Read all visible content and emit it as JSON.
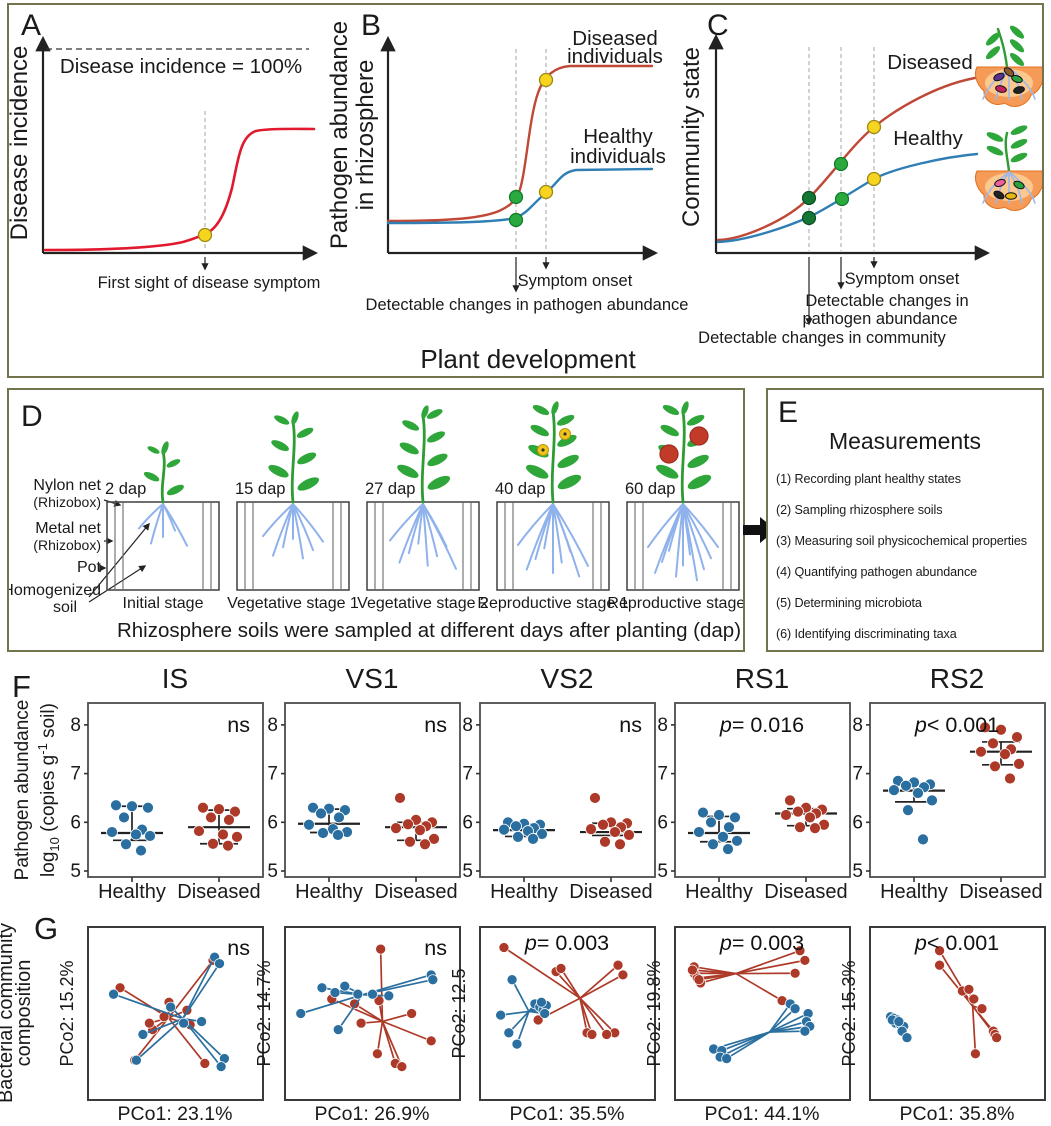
{
  "colors": {
    "frame_olive": "#74744c",
    "curve_red_bright": "#e0192e",
    "curve_red": "#bf4936",
    "curve_blue": "#2f7fb5",
    "dot_yellow": "#f6d41f",
    "dot_green": "#29a93e",
    "dot_dark_green": "#157533",
    "scatter_blue": "#2a6f9f",
    "scatter_red": "#ad3a28",
    "root_blue": "#8fb2ec",
    "soil_orange": "#f59b57",
    "plant_green": "#2fa63a"
  },
  "x_shared_label": "Plant development",
  "panel_a": {
    "label": "A",
    "y_label": "Disease incidence",
    "ceiling_label": "Disease incidence = 100%",
    "annotation": "First sight of disease symptom"
  },
  "panel_b": {
    "label": "B",
    "y_label": [
      "Pathogen abundance",
      "in rhizosphere"
    ],
    "diseased_label": [
      "Diseased",
      "individuals"
    ],
    "healthy_label": [
      "Healthy",
      "individuals"
    ],
    "symptom_onset": "Symptom onset",
    "detect_pathogen": "Detectable changes in pathogen abundance"
  },
  "panel_c": {
    "label": "C",
    "y_label": "Community state",
    "diseased_label": "Diseased",
    "healthy_label": "Healthy",
    "symptom_onset": "Symptom onset",
    "detect_pathogen": [
      "Detectable changes in",
      "pathogen abundance"
    ],
    "detect_community": "Detectable changes in community"
  },
  "panel_d": {
    "label": "D",
    "left_annotations": [
      {
        "lines": [
          "Nylon net",
          "(Rhizobox)"
        ]
      },
      {
        "lines": [
          "Metal net",
          "(Rhizobox)"
        ]
      },
      {
        "lines": [
          "Pot"
        ]
      },
      {
        "lines": [
          "Homogenized",
          "soil"
        ]
      }
    ],
    "stages": [
      {
        "dap": "2 dap",
        "name": "Initial stage"
      },
      {
        "dap": "15 dap",
        "name": "Vegetative stage 1"
      },
      {
        "dap": "27 dap",
        "name": "Vegetative stage 2"
      },
      {
        "dap": "40 dap",
        "name": "Reproductive stage 1"
      },
      {
        "dap": "60 dap",
        "name": "Reproductive stage 2"
      }
    ],
    "caption": "Rhizosphere soils were sampled at different days after planting (dap)"
  },
  "panel_e": {
    "label": "E",
    "title": "Measurements",
    "items": [
      "(1) Recording plant healthy states",
      "(2) Sampling rhizosphere soils",
      "(3) Measuring soil physicochemical properties",
      "(4) Quantifying pathogen abundance",
      "(5) Determining microbiota",
      "(6) Identifying discriminating taxa"
    ]
  },
  "panel_f": {
    "label": "F",
    "y_label_line1": "Pathogen abundance",
    "y_label_line2_parts": [
      {
        "t": "log"
      },
      {
        "t": "10",
        "s": "sub"
      },
      {
        "t": " (copies g"
      },
      {
        "t": "-1",
        "s": "sup"
      },
      {
        "t": " soil)"
      }
    ],
    "categories": [
      "Healthy",
      "Diseased"
    ]
  },
  "panel_g": {
    "label": "G",
    "y_label": [
      "Bacterial community",
      "composition"
    ]
  },
  "chart_data": [
    {
      "id": "A",
      "type": "line",
      "conceptual": true,
      "ylabel": "Disease incidence",
      "xlabel": "Plant development",
      "series": [
        {
          "name": "Disease incidence",
          "shape": "sigmoid",
          "color": "#e0192e"
        }
      ],
      "annotations": [
        "Disease incidence = 100%",
        "First sight of disease symptom"
      ],
      "markers": [
        {
          "type": "yellow-dot",
          "meaning": "first sight of disease symptom"
        }
      ]
    },
    {
      "id": "B",
      "type": "line",
      "conceptual": true,
      "ylabel": "Pathogen abundance in rhizosphere",
      "xlabel": "Plant development",
      "series": [
        {
          "name": "Diseased individuals",
          "shape": "steep sigmoid, high plateau",
          "color": "#bf4936"
        },
        {
          "name": "Healthy individuals",
          "shape": "shallow sigmoid, low plateau",
          "color": "#2f7fb5"
        }
      ],
      "annotations": [
        "Symptom onset",
        "Detectable changes in pathogen abundance"
      ],
      "markers": [
        {
          "type": "green-dot",
          "meaning": "detectable change"
        },
        {
          "type": "yellow-dot",
          "meaning": "symptom onset"
        }
      ]
    },
    {
      "id": "C",
      "type": "line",
      "conceptual": true,
      "ylabel": "Community state",
      "xlabel": "Plant development",
      "series": [
        {
          "name": "Diseased",
          "shape": "smooth S-curve, high plateau",
          "color": "#bf4936"
        },
        {
          "name": "Healthy",
          "shape": "smooth S-curve, low plateau",
          "color": "#2f7fb5"
        }
      ],
      "annotations": [
        "Symptom onset",
        "Detectable changes in pathogen abundance",
        "Detectable changes in community"
      ],
      "markers": [
        {
          "type": "dark-green-dot",
          "meaning": "detectable changes in community"
        },
        {
          "type": "green-dot",
          "meaning": "detectable changes in pathogen abundance"
        },
        {
          "type": "yellow-dot",
          "meaning": "symptom onset"
        }
      ]
    },
    {
      "id": "F",
      "type": "scatter",
      "subtype": "strip-dot-plot",
      "ylabel": "Pathogen abundance log10 (copies g-1 soil)",
      "ylim": [
        4.9,
        8.5
      ],
      "yticks": [
        5,
        6,
        7,
        8
      ],
      "categories": [
        "Healthy",
        "Diseased"
      ],
      "plots": [
        {
          "stage": "IS",
          "significance": "ns",
          "healthy": {
            "values": [
              6.35,
              6.33,
              6.3,
              6.1,
              5.85,
              5.8,
              5.75,
              5.72,
              5.55,
              5.42
            ],
            "median": 5.78,
            "lo": 5.63,
            "hi": 6.33
          },
          "diseased": {
            "values": [
              6.3,
              6.27,
              6.22,
              6.1,
              6.05,
              5.82,
              5.75,
              5.7,
              5.56,
              5.52
            ],
            "median": 5.9,
            "lo": 5.56,
            "hi": 6.25
          }
        },
        {
          "stage": "VS1",
          "significance": "ns",
          "healthy": {
            "values": [
              6.3,
              6.28,
              6.25,
              6.18,
              6.1,
              5.95,
              5.86,
              5.8,
              5.78,
              5.74
            ],
            "median": 5.97,
            "lo": 5.79,
            "hi": 6.27
          },
          "diseased": {
            "values": [
              6.5,
              6.05,
              6.0,
              5.96,
              5.92,
              5.88,
              5.84,
              5.66,
              5.6,
              5.55
            ],
            "median": 5.9,
            "lo": 5.63,
            "hi": 6.0
          }
        },
        {
          "stage": "VS2",
          "significance": "ns",
          "healthy": {
            "values": [
              6.0,
              5.97,
              5.95,
              5.92,
              5.88,
              5.85,
              5.82,
              5.76,
              5.7,
              5.66
            ],
            "median": 5.84,
            "lo": 5.71,
            "hi": 5.96
          },
          "diseased": {
            "values": [
              6.5,
              6.0,
              5.98,
              5.95,
              5.9,
              5.86,
              5.8,
              5.74,
              5.6,
              5.55
            ],
            "median": 5.8,
            "lo": 5.73,
            "hi": 5.98
          }
        },
        {
          "stage": "RS1",
          "significance": "p= 0.016",
          "healthy": {
            "values": [
              6.2,
              6.15,
              6.1,
              6.0,
              5.9,
              5.8,
              5.7,
              5.62,
              5.55,
              5.45
            ],
            "median": 5.78,
            "lo": 5.6,
            "hi": 6.12
          },
          "diseased": {
            "values": [
              6.45,
              6.3,
              6.26,
              6.22,
              6.18,
              6.15,
              6.1,
              5.95,
              5.9,
              5.88
            ],
            "median": 6.18,
            "lo": 5.93,
            "hi": 6.28
          }
        },
        {
          "stage": "RS2",
          "significance": "p< 0.001",
          "healthy": {
            "values": [
              6.85,
              6.82,
              6.78,
              6.75,
              6.72,
              6.66,
              6.6,
              6.45,
              6.25,
              5.65
            ],
            "median": 6.65,
            "lo": 6.42,
            "hi": 6.78
          },
          "diseased": {
            "values": [
              7.95,
              7.9,
              7.75,
              7.62,
              7.5,
              7.45,
              7.4,
              7.2,
              7.15,
              6.9
            ],
            "median": 7.45,
            "lo": 7.18,
            "hi": 7.65
          }
        }
      ]
    },
    {
      "id": "G",
      "type": "scatter",
      "subtype": "pcoa-spider",
      "ylabel": "Bacterial community composition",
      "plots": [
        {
          "stage": "IS",
          "significance": "ns",
          "xlabel": "PCo1: 23.1%",
          "ylabel": "PCo2: 15.2%",
          "healthy": [
            [
              12,
              38
            ],
            [
              47,
              46
            ],
            [
              55,
              56
            ],
            [
              66,
              55
            ],
            [
              30,
              63
            ],
            [
              26,
              79
            ],
            [
              74,
              15
            ],
            [
              77,
              19
            ],
            [
              80,
              78
            ],
            [
              78,
              83
            ]
          ],
          "diseased": [
            [
              16,
              34
            ],
            [
              43,
              52
            ],
            [
              57,
              48
            ],
            [
              36,
              60
            ],
            [
              25,
              79
            ],
            [
              73,
              17
            ],
            [
              59,
              57
            ],
            [
              46,
              43
            ],
            [
              68,
              81
            ],
            [
              34,
              56
            ]
          ]
        },
        {
          "stage": "VS1",
          "significance": "ns",
          "xlabel": "PCo1: 26.9%",
          "ylabel": "PCo2: 14.7%",
          "healthy": [
            [
              6,
              50
            ],
            [
              19,
              34
            ],
            [
              27,
              37
            ],
            [
              33,
              33
            ],
            [
              41,
              38
            ],
            [
              50,
              38
            ],
            [
              60,
              39
            ],
            [
              86,
              26
            ],
            [
              87,
              29
            ],
            [
              29,
              60
            ]
          ],
          "diseased": [
            [
              55,
              10
            ],
            [
              25,
              41
            ],
            [
              39,
              44
            ],
            [
              54,
              42
            ],
            [
              74,
              50
            ],
            [
              86,
              67
            ],
            [
              53,
              75
            ],
            [
              64,
              81
            ],
            [
              68,
              83
            ],
            [
              43,
              56
            ]
          ]
        },
        {
          "stage": "VS2",
          "significance": "p= 0.003",
          "xlabel": "PCo1: 35.5%",
          "ylabel": "PCo2: 12.5",
          "healthy": [
            [
              16,
              29
            ],
            [
              9,
              51
            ],
            [
              14,
              62
            ],
            [
              19,
              69
            ],
            [
              30,
              44
            ],
            [
              33,
              46
            ],
            [
              35,
              48
            ],
            [
              37,
              45
            ],
            [
              34,
              43
            ],
            [
              36,
              50
            ]
          ],
          "diseased": [
            [
              11,
              9
            ],
            [
              43,
              24
            ],
            [
              46,
              22
            ],
            [
              81,
              20
            ],
            [
              84,
              26
            ],
            [
              32,
              54
            ],
            [
              62,
              62
            ],
            [
              65,
              63
            ],
            [
              79,
              62
            ],
            [
              74,
              63
            ]
          ]
        },
        {
          "stage": "RS1",
          "significance": "p= 0.003",
          "xlabel": "PCo1: 44.1%",
          "ylabel": "PCo2: 19.8%",
          "healthy": [
            [
              67,
              44
            ],
            [
              70,
              47
            ],
            [
              78,
              50
            ],
            [
              77,
              55
            ],
            [
              79,
              58
            ],
            [
              76,
              61
            ],
            [
              20,
              72
            ],
            [
              25,
              73
            ],
            [
              24,
              77
            ],
            [
              28,
              78
            ]
          ],
          "diseased": [
            [
              8,
              21
            ],
            [
              8,
              25
            ],
            [
              10,
              28
            ],
            [
              12,
              31
            ],
            [
              7,
              23
            ],
            [
              73,
              11
            ],
            [
              76,
              17
            ],
            [
              70,
              25
            ],
            [
              62,
              42
            ],
            [
              11,
              29
            ]
          ]
        },
        {
          "stage": "RS2",
          "significance": "p< 0.001",
          "xlabel": "PCo1: 35.8%",
          "ylabel": "PCo2: 15.3%",
          "healthy": [
            [
              9,
              52
            ],
            [
              11,
              53
            ],
            [
              13,
              54
            ],
            [
              12,
              56
            ],
            [
              15,
              57
            ],
            [
              17,
              58
            ],
            [
              16,
              61
            ],
            [
              19,
              65
            ],
            [
              10,
              54
            ],
            [
              14,
              55
            ]
          ],
          "diseased": [
            [
              39,
              11
            ],
            [
              39,
              20
            ],
            [
              53,
              36
            ],
            [
              57,
              35
            ],
            [
              60,
              41
            ],
            [
              65,
              47
            ],
            [
              72,
              61
            ],
            [
              73,
              63
            ],
            [
              74,
              65
            ],
            [
              61,
              75
            ]
          ]
        }
      ]
    }
  ]
}
